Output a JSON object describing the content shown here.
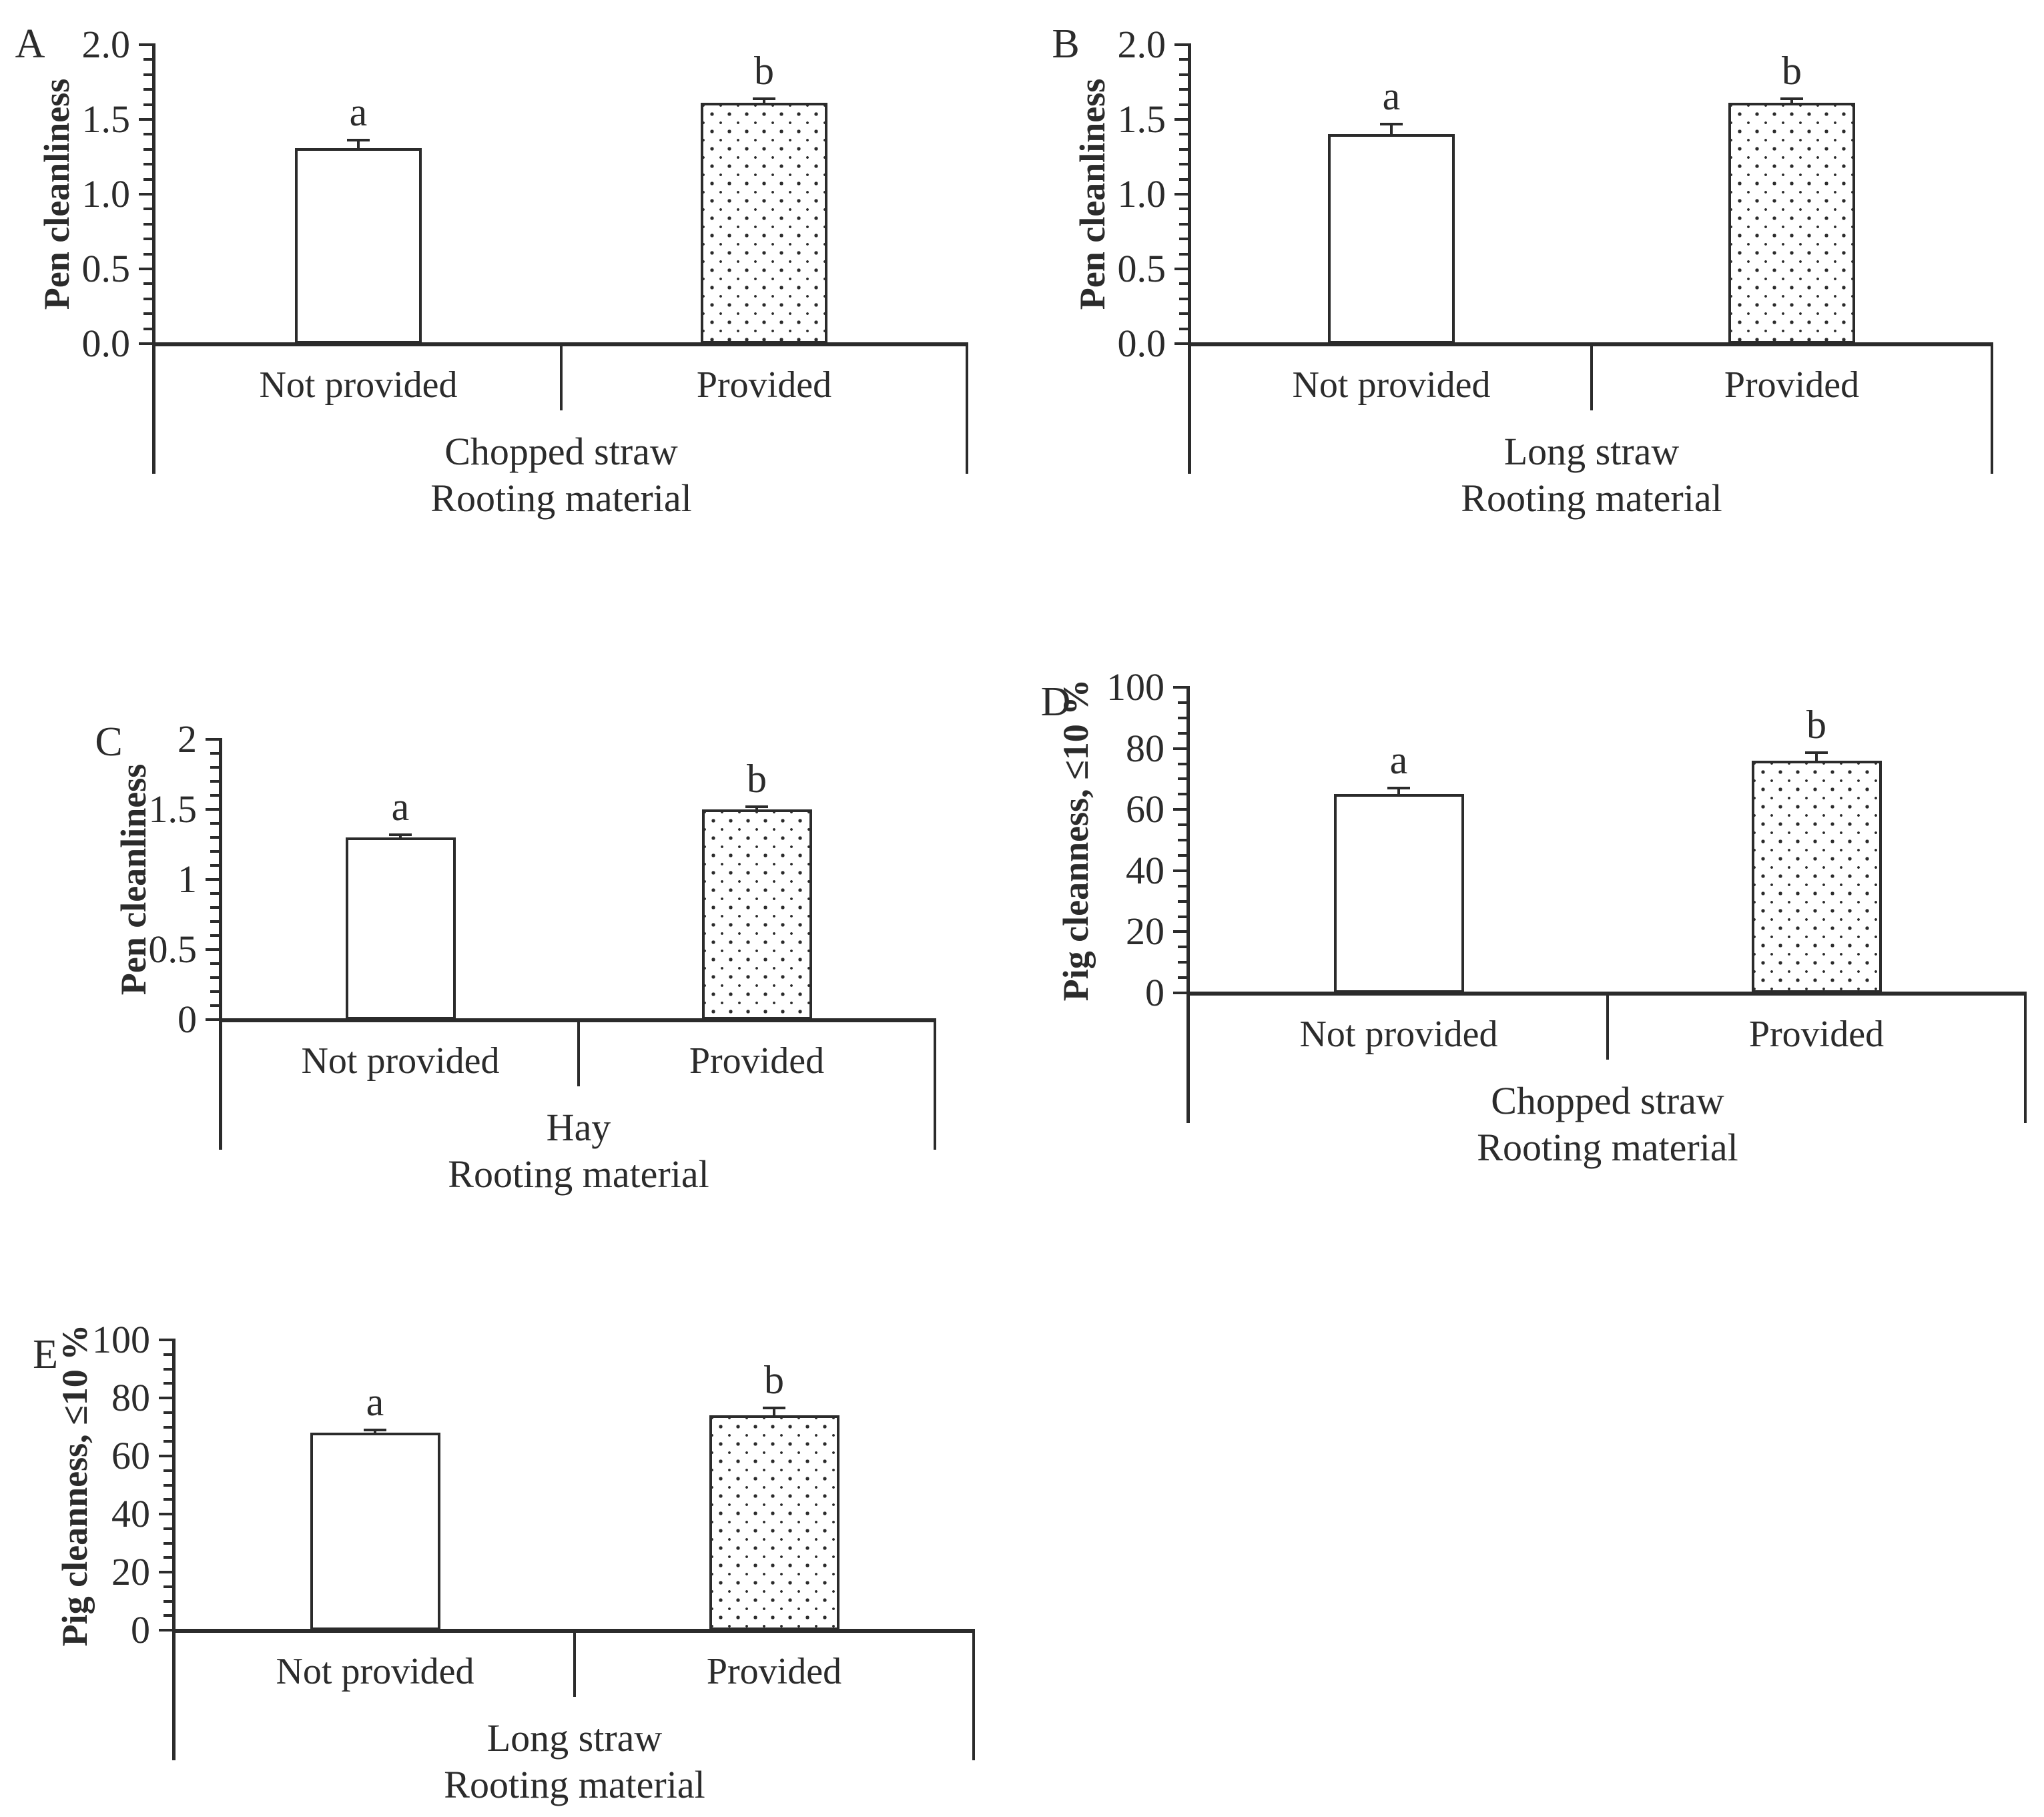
{
  "figure": {
    "background": "#ffffff",
    "ink_color": "#2b2b2b",
    "bar_fill_plain": "#ffffff",
    "bar_pattern_provided": "black-dot-stipple",
    "panels": [
      "A",
      "B",
      "C",
      "D",
      "E"
    ]
  },
  "chart_data": [
    {
      "id": "A",
      "panel_label": "A",
      "type": "bar",
      "ylabel": "Pen cleanliness",
      "xlabel": "Rooting material",
      "group_label": "Chopped straw",
      "categories": [
        "Not provided",
        "Provided"
      ],
      "values": [
        1.31,
        1.61
      ],
      "errors": [
        0.05,
        0.03
      ],
      "sig_letters": [
        "a",
        "b"
      ],
      "ylim": [
        0,
        2.0
      ],
      "ytick_labels": [
        "0.0",
        "0.5",
        "1.0",
        "1.5",
        "2.0"
      ],
      "major_step": 0.5,
      "minor_step": 0.1,
      "bar_styles": [
        "plain",
        "dotted"
      ],
      "grid": false,
      "legend": "none"
    },
    {
      "id": "B",
      "panel_label": "B",
      "type": "bar",
      "ylabel": "Pen cleanliness",
      "xlabel": "Rooting material",
      "group_label": "Long straw",
      "categories": [
        "Not provided",
        "Provided"
      ],
      "values": [
        1.4,
        1.61
      ],
      "errors": [
        0.07,
        0.03
      ],
      "sig_letters": [
        "a",
        "b"
      ],
      "ylim": [
        0,
        2.0
      ],
      "ytick_labels": [
        "0.0",
        "0.5",
        "1.0",
        "1.5",
        "2.0"
      ],
      "major_step": 0.5,
      "minor_step": 0.1,
      "bar_styles": [
        "plain",
        "dotted"
      ],
      "grid": false,
      "legend": "none"
    },
    {
      "id": "C",
      "panel_label": "C",
      "type": "bar",
      "ylabel": "Pen cleanliness",
      "xlabel": "Rooting material",
      "group_label": "Hay",
      "categories": [
        "Not provided",
        "Provided"
      ],
      "values": [
        1.3,
        1.5
      ],
      "errors": [
        0.02,
        0.02
      ],
      "sig_letters": [
        "a",
        "b"
      ],
      "ylim": [
        0,
        2
      ],
      "ytick_labels": [
        "0",
        "0.5",
        "1",
        "1.5",
        "2"
      ],
      "major_step": 0.5,
      "minor_step": 0.1,
      "bar_styles": [
        "plain",
        "dotted"
      ],
      "grid": false,
      "legend": "none"
    },
    {
      "id": "D",
      "panel_label": "D",
      "type": "bar",
      "ylabel": "Pig cleanness, ≤10 %",
      "xlabel": "Rooting material",
      "group_label": "Chopped straw",
      "categories": [
        "Not provided",
        "Provided"
      ],
      "values": [
        65,
        76
      ],
      "errors": [
        2,
        2.5
      ],
      "sig_letters": [
        "a",
        "b"
      ],
      "ylim": [
        0,
        100
      ],
      "ytick_labels": [
        "0",
        "20",
        "40",
        "60",
        "80",
        "100"
      ],
      "major_step": 20,
      "minor_step": 5,
      "bar_styles": [
        "plain",
        "dotted"
      ],
      "grid": false,
      "legend": "none"
    },
    {
      "id": "E",
      "panel_label": "E",
      "type": "bar",
      "ylabel": "Pig cleanness, ≤10 %",
      "xlabel": "Rooting material",
      "group_label": "Long straw",
      "categories": [
        "Not provided",
        "Provided"
      ],
      "values": [
        68,
        74
      ],
      "errors": [
        1,
        2.5
      ],
      "sig_letters": [
        "a",
        "b"
      ],
      "ylim": [
        0,
        100
      ],
      "ytick_labels": [
        "0",
        "20",
        "40",
        "60",
        "80",
        "100"
      ],
      "major_step": 20,
      "minor_step": 5,
      "bar_styles": [
        "plain",
        "dotted"
      ],
      "grid": false,
      "legend": "none"
    }
  ]
}
